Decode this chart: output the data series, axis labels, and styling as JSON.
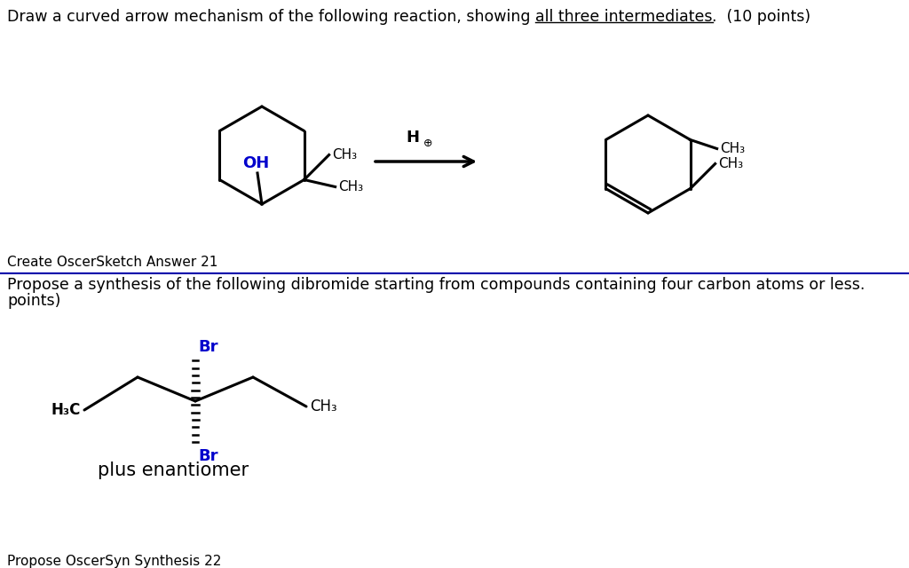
{
  "bg_color": "#ffffff",
  "blue_color": "#0000cc",
  "black_color": "#000000",
  "divider_color": "#0000aa",
  "top_line1_pre": "Draw a curved arrow mechanism of the following reaction, showing ",
  "top_line1_underlined": "all three intermediates",
  "top_line1_post": ".  (10 points)",
  "create_label": "Create OscerSketch Answer 21",
  "propose_line1": "Propose a synthesis of the following dibromide starting from compounds containing four carbon atoms or less.",
  "propose_line2": "points)",
  "propose_label": "Propose OscerSyn Synthesis 22",
  "plus_enantiomer": "plus enantiomer"
}
